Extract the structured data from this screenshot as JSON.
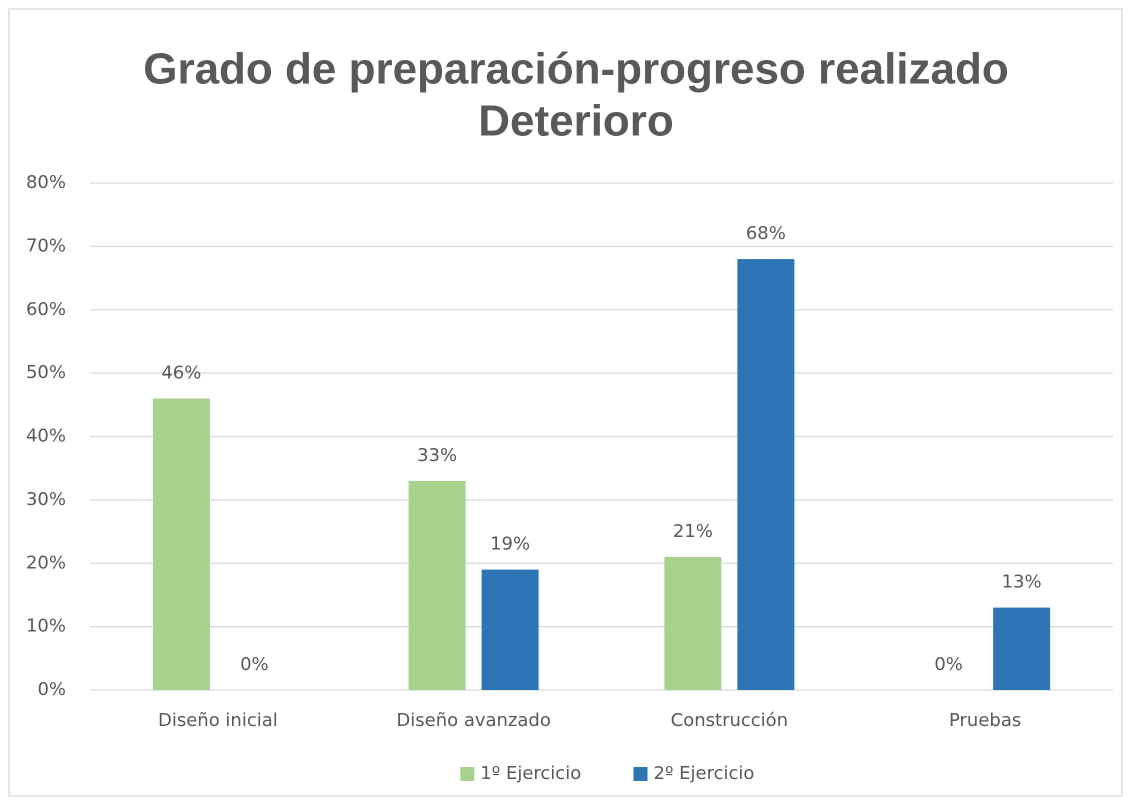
{
  "chart_data": {
    "type": "bar",
    "title": [
      "Grado de preparación-progreso realizado",
      "Deterioro"
    ],
    "categories": [
      "Diseño inicial",
      "Diseño avanzado",
      "Construcción",
      "Pruebas"
    ],
    "series": [
      {
        "name": "1º Ejercicio",
        "color": "#a9d18e",
        "values": [
          46,
          33,
          21,
          0
        ],
        "value_labels": [
          "46%",
          "33%",
          "21%",
          "0%"
        ]
      },
      {
        "name": "2º Ejercicio",
        "color": "#2e75b6",
        "values": [
          0,
          19,
          68,
          13
        ],
        "value_labels": [
          "0%",
          "19%",
          "68%",
          "13%"
        ]
      }
    ],
    "ylim": [
      0,
      80
    ],
    "yticks": [
      {
        "value": 0,
        "label": "0%"
      },
      {
        "value": 10,
        "label": "10%"
      },
      {
        "value": 20,
        "label": "20%"
      },
      {
        "value": 30,
        "label": "30%"
      },
      {
        "value": 40,
        "label": "40%"
      },
      {
        "value": 50,
        "label": "50%"
      },
      {
        "value": 60,
        "label": "60%"
      },
      {
        "value": 70,
        "label": "70%"
      },
      {
        "value": 80,
        "label": "80%"
      }
    ],
    "grid": true,
    "legend": "bottom"
  }
}
